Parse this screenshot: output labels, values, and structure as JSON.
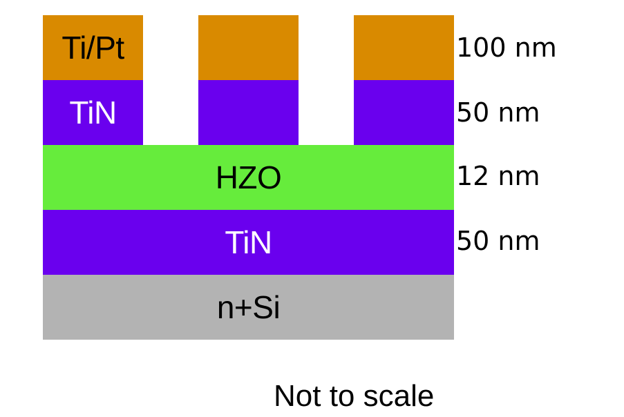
{
  "colors": {
    "ti_pt": "#d98a00",
    "tin": "#6a00ee",
    "hzo": "#66ec3c",
    "n_si": "#b3b3b3",
    "label_dark": "#000000",
    "label_light": "#ffffff"
  },
  "layers": {
    "top_left_ti_pt": "Ti/Pt",
    "top_left_tin": "TiN",
    "hzo": "HZO",
    "bottom_tin": "TiN",
    "substrate": "n+Si"
  },
  "thicknesses": {
    "ti_pt": "100 nm",
    "tin_top": "50 nm",
    "hzo": "12 nm",
    "tin_bottom": "50 nm"
  },
  "caption": "Not to scale"
}
